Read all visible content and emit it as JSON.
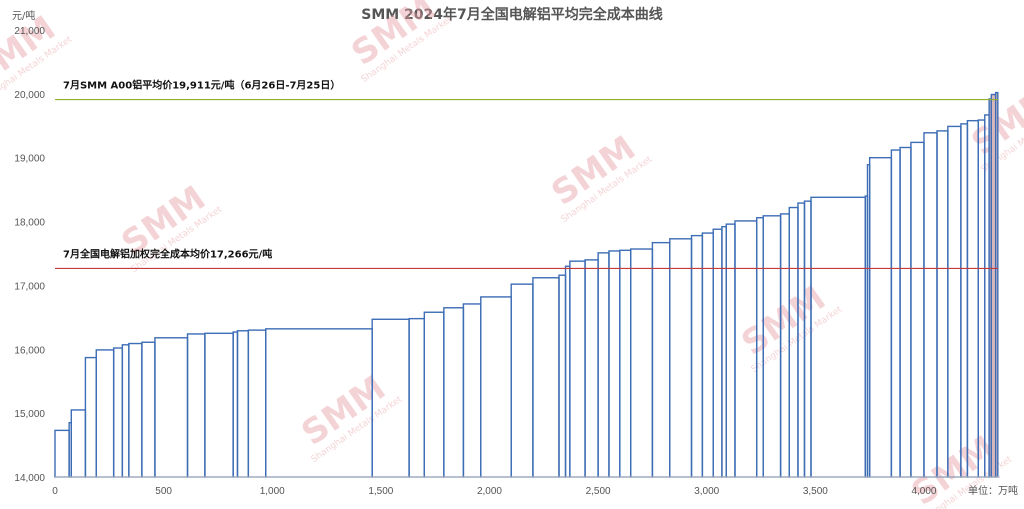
{
  "chart_data": {
    "type": "bar",
    "subtype": "cost-curve",
    "title": "SMM  2024年7月全国电解铝平均完全成本曲线",
    "ylabel": "元/吨",
    "xlabel": "单位：万吨",
    "xlim": [
      0,
      4350
    ],
    "ylim": [
      14000,
      21000
    ],
    "y_ticks": [
      "14,000",
      "15,000",
      "16,000",
      "17,000",
      "18,000",
      "19,000",
      "20,000",
      "21,000"
    ],
    "x_ticks": [
      "0",
      "500",
      "1,000",
      "1,500",
      "2,000",
      "2,500",
      "3,000",
      "3,500",
      "4,000"
    ],
    "x_tick_values": [
      0,
      500,
      1000,
      1500,
      2000,
      2500,
      3000,
      3500,
      4000
    ],
    "y_tick_values": [
      14000,
      15000,
      16000,
      17000,
      18000,
      19000,
      20000,
      21000
    ],
    "bar_color": "#3d6db5",
    "capacity_segments": [
      {
        "x0": 0,
        "x1": 65,
        "cost": 14730
      },
      {
        "x0": 65,
        "x1": 75,
        "cost": 14850
      },
      {
        "x0": 75,
        "x1": 140,
        "cost": 15050
      },
      {
        "x0": 140,
        "x1": 190,
        "cost": 15870
      },
      {
        "x0": 190,
        "x1": 270,
        "cost": 15990
      },
      {
        "x0": 270,
        "x1": 310,
        "cost": 16020
      },
      {
        "x0": 310,
        "x1": 340,
        "cost": 16070
      },
      {
        "x0": 340,
        "x1": 400,
        "cost": 16090
      },
      {
        "x0": 400,
        "x1": 460,
        "cost": 16110
      },
      {
        "x0": 460,
        "x1": 610,
        "cost": 16180
      },
      {
        "x0": 610,
        "x1": 690,
        "cost": 16240
      },
      {
        "x0": 690,
        "x1": 820,
        "cost": 16250
      },
      {
        "x0": 820,
        "x1": 840,
        "cost": 16270
      },
      {
        "x0": 840,
        "x1": 890,
        "cost": 16290
      },
      {
        "x0": 890,
        "x1": 970,
        "cost": 16300
      },
      {
        "x0": 970,
        "x1": 1460,
        "cost": 16320
      },
      {
        "x0": 1460,
        "x1": 1630,
        "cost": 16470
      },
      {
        "x0": 1630,
        "x1": 1700,
        "cost": 16480
      },
      {
        "x0": 1700,
        "x1": 1790,
        "cost": 16580
      },
      {
        "x0": 1790,
        "x1": 1880,
        "cost": 16650
      },
      {
        "x0": 1880,
        "x1": 1960,
        "cost": 16710
      },
      {
        "x0": 1960,
        "x1": 2100,
        "cost": 16820
      },
      {
        "x0": 2100,
        "x1": 2200,
        "cost": 17020
      },
      {
        "x0": 2200,
        "x1": 2320,
        "cost": 17120
      },
      {
        "x0": 2320,
        "x1": 2350,
        "cost": 17160
      },
      {
        "x0": 2350,
        "x1": 2370,
        "cost": 17300
      },
      {
        "x0": 2370,
        "x1": 2440,
        "cost": 17380
      },
      {
        "x0": 2440,
        "x1": 2500,
        "cost": 17400
      },
      {
        "x0": 2500,
        "x1": 2550,
        "cost": 17510
      },
      {
        "x0": 2550,
        "x1": 2600,
        "cost": 17540
      },
      {
        "x0": 2600,
        "x1": 2650,
        "cost": 17550
      },
      {
        "x0": 2650,
        "x1": 2750,
        "cost": 17570
      },
      {
        "x0": 2750,
        "x1": 2830,
        "cost": 17670
      },
      {
        "x0": 2830,
        "x1": 2930,
        "cost": 17730
      },
      {
        "x0": 2930,
        "x1": 2980,
        "cost": 17780
      },
      {
        "x0": 2980,
        "x1": 3030,
        "cost": 17820
      },
      {
        "x0": 3030,
        "x1": 3070,
        "cost": 17880
      },
      {
        "x0": 3070,
        "x1": 3090,
        "cost": 17920
      },
      {
        "x0": 3090,
        "x1": 3130,
        "cost": 17960
      },
      {
        "x0": 3130,
        "x1": 3230,
        "cost": 18010
      },
      {
        "x0": 3230,
        "x1": 3260,
        "cost": 18060
      },
      {
        "x0": 3260,
        "x1": 3340,
        "cost": 18090
      },
      {
        "x0": 3340,
        "x1": 3380,
        "cost": 18120
      },
      {
        "x0": 3380,
        "x1": 3420,
        "cost": 18220
      },
      {
        "x0": 3420,
        "x1": 3450,
        "cost": 18290
      },
      {
        "x0": 3450,
        "x1": 3480,
        "cost": 18320
      },
      {
        "x0": 3480,
        "x1": 3730,
        "cost": 18380
      },
      {
        "x0": 3730,
        "x1": 3740,
        "cost": 18400
      },
      {
        "x0": 3740,
        "x1": 3750,
        "cost": 18890
      },
      {
        "x0": 3750,
        "x1": 3850,
        "cost": 19000
      },
      {
        "x0": 3850,
        "x1": 3890,
        "cost": 19120
      },
      {
        "x0": 3890,
        "x1": 3940,
        "cost": 19160
      },
      {
        "x0": 3940,
        "x1": 4000,
        "cost": 19240
      },
      {
        "x0": 4000,
        "x1": 4060,
        "cost": 19390
      },
      {
        "x0": 4060,
        "x1": 4110,
        "cost": 19420
      },
      {
        "x0": 4110,
        "x1": 4170,
        "cost": 19490
      },
      {
        "x0": 4170,
        "x1": 4200,
        "cost": 19530
      },
      {
        "x0": 4200,
        "x1": 4250,
        "cost": 19580
      },
      {
        "x0": 4250,
        "x1": 4280,
        "cost": 19590
      },
      {
        "x0": 4280,
        "x1": 4300,
        "cost": 19670
      },
      {
        "x0": 4300,
        "x1": 4310,
        "cost": 19920
      },
      {
        "x0": 4310,
        "x1": 4330,
        "cost": 19990
      },
      {
        "x0": 4330,
        "x1": 4340,
        "cost": 20020
      }
    ],
    "reference_lines": [
      {
        "label": "7月SMM A00铝平均价19,911元/吨（6月26日-7月25日）",
        "value": 19911,
        "color": "#8fae2a"
      },
      {
        "label": "7月全国电解铝加权完全成本均价17,266元/吨",
        "value": 17266,
        "color": "#c43a3a"
      }
    ],
    "grid": false,
    "legend": "none"
  },
  "watermark": {
    "text": "SMM",
    "subtext": "Shanghai Metals Market",
    "color": "#e8a0a6"
  }
}
